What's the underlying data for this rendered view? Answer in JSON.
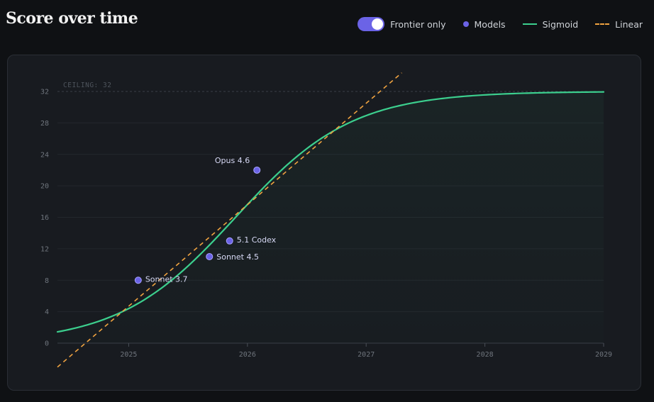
{
  "header": {
    "title": "Score over time"
  },
  "legend": {
    "toggle_label": "Frontier only",
    "toggle_on": true,
    "models_label": "Models",
    "sigmoid_label": "Sigmoid",
    "linear_label": "Linear"
  },
  "colors": {
    "models": "#6b63e6",
    "sigmoid": "#3ccf8e",
    "linear": "#f0a340",
    "toggle": "#6b63e6"
  },
  "chart_data": {
    "type": "scatter",
    "title": "Score over time",
    "xlabel": "",
    "ylabel": "",
    "xlim": [
      2024.4,
      2029
    ],
    "ylim": [
      0,
      32
    ],
    "x_ticks": [
      "2025",
      "2026",
      "2027",
      "2028",
      "2029"
    ],
    "y_ticks": [
      "0",
      "4",
      "8",
      "12",
      "16",
      "20",
      "24",
      "28",
      "32"
    ],
    "grid": true,
    "ceiling": {
      "value": 32,
      "label": "CEILING: 32"
    },
    "points": [
      {
        "name": "Sonnet 3.7",
        "x": 2025.08,
        "y": 8
      },
      {
        "name": "Sonnet 4.5",
        "x": 2025.68,
        "y": 11
      },
      {
        "name": "5.1 Codex",
        "x": 2025.85,
        "y": 13
      },
      {
        "name": "Opus 4.6",
        "x": 2026.08,
        "y": 22
      }
    ],
    "sigmoid_fit": {
      "L": 32,
      "k": 2.04,
      "x0": 2025.9
    },
    "linear_fit": {
      "slope": 12.9,
      "intercept_at_2025": 4.7,
      "x_range": [
        2024.4,
        2027.3
      ]
    }
  }
}
